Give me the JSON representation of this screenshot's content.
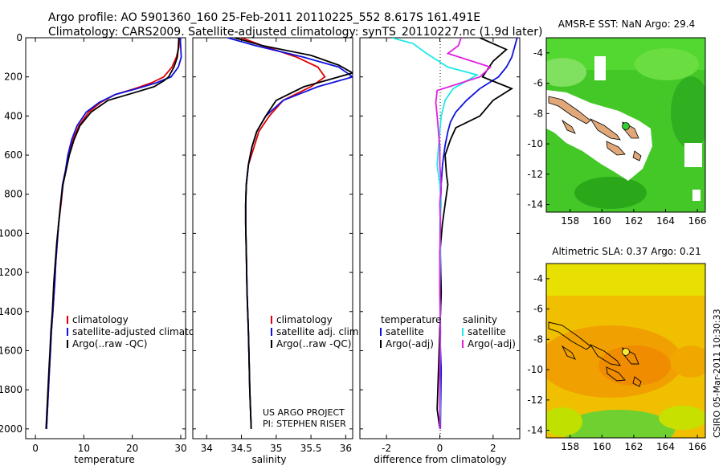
{
  "header": {
    "line1": "Argo profile: AO 5901360_160 25-Feb-2011 20110225_552 8.617S 161.491E",
    "line2": "Climatology: CARS2009. Satellite-adjusted climatology: synTS_20110227.nc (1.9d later)"
  },
  "credit": {
    "project": "US ARGO PROJECT",
    "pi": "PI: STEPHEN RISER",
    "timestamp": "CSIRO 05-Mar-2011 10:30:33"
  },
  "colors": {
    "climatology": "#e00000",
    "satellite": "#1010e0",
    "argo": "#000000",
    "sal_satellite": "#20e8e8",
    "sal_argo": "#e020e0"
  },
  "chart_data": [
    {
      "type": "line",
      "xlabel": "temperature",
      "ylabel": "",
      "xlim": [
        -2,
        31
      ],
      "ylim": [
        2050,
        0
      ],
      "xticks": [
        0,
        10,
        20,
        30
      ],
      "yticks": [
        0,
        200,
        400,
        600,
        800,
        1000,
        1200,
        1400,
        1600,
        1800,
        2000
      ],
      "legend": [
        "climatology",
        "satellite-adjusted climatology",
        "Argo(..raw -QC)"
      ],
      "series": [
        {
          "name": "climatology",
          "color": "#e00000",
          "x": [
            29.8,
            29.6,
            29.1,
            28.2,
            26.5,
            24.0,
            20.5,
            16.5,
            13.5,
            11.0,
            9.0,
            7.8,
            6.9,
            6.3,
            5.7,
            5.3,
            4.8,
            4.5,
            4.2,
            4.0,
            3.6,
            3.3,
            3.1,
            2.9,
            2.7,
            2.5,
            2.3
          ],
          "y": [
            0,
            50,
            100,
            150,
            200,
            230,
            260,
            290,
            330,
            380,
            450,
            520,
            600,
            680,
            750,
            850,
            950,
            1050,
            1150,
            1250,
            1400,
            1500,
            1600,
            1700,
            1800,
            1900,
            2000
          ]
        },
        {
          "name": "satellite-adjusted climatology",
          "color": "#1010e0",
          "x": [
            29.9,
            30.0,
            30.1,
            29.5,
            28.0,
            25.0,
            21.0,
            16.5,
            13.2,
            10.5,
            8.6,
            7.5,
            6.7,
            6.2,
            5.6,
            5.2,
            4.8,
            4.5,
            4.2,
            4.0,
            3.6,
            3.3,
            3.1,
            2.9,
            2.7,
            2.5,
            2.3
          ],
          "y": [
            0,
            50,
            100,
            150,
            200,
            230,
            260,
            290,
            330,
            380,
            450,
            520,
            600,
            680,
            750,
            850,
            950,
            1050,
            1150,
            1250,
            1400,
            1500,
            1600,
            1700,
            1800,
            1900,
            2000
          ]
        },
        {
          "name": "Argo(..raw -QC)",
          "color": "#000000",
          "x": [
            29.6,
            29.5,
            29.3,
            28.6,
            27.5,
            26.5,
            24.5,
            20.5,
            15.0,
            11.5,
            9.2,
            8.0,
            7.0,
            6.3,
            5.7,
            5.2,
            4.8,
            4.4,
            4.1,
            3.8,
            3.5,
            3.2,
            3.0,
            2.8,
            2.6,
            2.4,
            2.2
          ],
          "y": [
            0,
            50,
            100,
            150,
            200,
            220,
            250,
            280,
            320,
            380,
            450,
            520,
            600,
            680,
            750,
            850,
            950,
            1050,
            1150,
            1250,
            1400,
            1500,
            1600,
            1700,
            1800,
            1900,
            2000
          ]
        }
      ]
    },
    {
      "type": "line",
      "xlabel": "salinity",
      "ylabel": "",
      "xlim": [
        33.8,
        36.1
      ],
      "ylim": [
        2050,
        0
      ],
      "xticks": [
        34,
        34.5,
        35,
        35.5,
        36
      ],
      "legend": [
        "climatology",
        "satellite adj. clim.",
        "Argo(..raw -QC)"
      ],
      "series": [
        {
          "name": "climatology",
          "color": "#e00000",
          "x": [
            34.5,
            34.8,
            35.3,
            35.6,
            35.7,
            35.5,
            35.1,
            34.9,
            34.75,
            34.68,
            34.6,
            34.57,
            34.56,
            34.56,
            34.57,
            34.58,
            34.6,
            34.61,
            34.62,
            34.63,
            34.64
          ],
          "y": [
            0,
            40,
            100,
            150,
            200,
            250,
            320,
            400,
            480,
            560,
            650,
            750,
            850,
            950,
            1100,
            1300,
            1500,
            1650,
            1800,
            1900,
            2000
          ]
        },
        {
          "name": "satellite adj. clim.",
          "color": "#1010e0",
          "x": [
            34.3,
            34.7,
            35.4,
            35.9,
            36.1,
            35.6,
            35.1,
            34.85,
            34.72,
            34.65,
            34.6,
            34.57,
            34.56,
            34.56,
            34.57,
            34.58,
            34.6,
            34.61,
            34.62,
            34.63,
            34.64
          ],
          "y": [
            0,
            40,
            100,
            150,
            200,
            250,
            320,
            400,
            480,
            560,
            650,
            750,
            850,
            950,
            1100,
            1300,
            1500,
            1650,
            1800,
            1900,
            2000
          ]
        },
        {
          "name": "Argo(..raw -QC)",
          "color": "#000000",
          "x": [
            34.4,
            34.8,
            35.5,
            35.9,
            36.1,
            35.4,
            35.0,
            34.85,
            34.72,
            34.65,
            34.6,
            34.57,
            34.56,
            34.56,
            34.57,
            34.58,
            34.6,
            34.61,
            34.62,
            34.63,
            34.64
          ],
          "y": [
            0,
            40,
            90,
            140,
            180,
            250,
            320,
            400,
            480,
            560,
            650,
            750,
            850,
            950,
            1100,
            1300,
            1500,
            1650,
            1800,
            1900,
            2000
          ]
        }
      ]
    },
    {
      "type": "line",
      "xlabel": "difference from climatology",
      "ylabel": "",
      "xlim": [
        -3,
        3
      ],
      "ylim": [
        2050,
        0
      ],
      "xticks": [
        -2,
        0,
        2
      ],
      "legend": [
        "temperature",
        "satellite",
        "Argo(-adj)",
        "salinity",
        "satellite",
        "Argo(-adj)"
      ],
      "series": [
        {
          "name": "satellite",
          "color": "#1010e0",
          "x": [
            2.9,
            2.8,
            2.7,
            2.5,
            2.2,
            1.5,
            1.0,
            0.6,
            0.4,
            0.3,
            0.2,
            0.1,
            0.05,
            0.02,
            0.02,
            0.05,
            0.0,
            0.05,
            0.03,
            0.02
          ],
          "y": [
            0,
            50,
            100,
            150,
            200,
            260,
            320,
            380,
            430,
            480,
            550,
            650,
            750,
            900,
            1100,
            1300,
            1500,
            1700,
            1900,
            2000
          ]
        },
        {
          "name": "Argo(-adj)",
          "color": "#000000",
          "x": [
            1.5,
            2.5,
            2.0,
            1.6,
            2.7,
            2.0,
            1.5,
            0.6,
            0.4,
            0.2,
            0.25,
            0.3,
            0.2,
            0.1,
            0.0,
            0.05,
            0.0,
            -0.05,
            -0.1,
            0.0
          ],
          "y": [
            0,
            60,
            120,
            200,
            260,
            320,
            400,
            460,
            520,
            600,
            700,
            750,
            850,
            950,
            1100,
            1300,
            1500,
            1700,
            1900,
            2000
          ]
        },
        {
          "name": "satellite",
          "color": "#20e8e8",
          "x": [
            -1.8,
            -1.0,
            -0.5,
            0.3,
            1.4,
            0.5,
            0.2,
            0.05,
            0.0,
            -0.05,
            -0.1,
            0.0,
            0.05,
            0.0,
            0.02,
            0.0,
            0.03,
            0.0,
            0.02,
            0.0
          ],
          "y": [
            0,
            30,
            80,
            150,
            190,
            260,
            320,
            400,
            480,
            560,
            650,
            750,
            850,
            950,
            1100,
            1300,
            1500,
            1700,
            1900,
            2000
          ]
        },
        {
          "name": "Argo(-adj)",
          "color": "#e020e0",
          "x": [
            0.8,
            0.7,
            0.3,
            1.9,
            1.5,
            -0.1,
            -0.15,
            -0.1,
            -0.05,
            0.0,
            0.0,
            0.05,
            0.0,
            0.02,
            0.0,
            0.0,
            0.02,
            0.0,
            0.0,
            0.0
          ],
          "y": [
            0,
            40,
            80,
            150,
            200,
            270,
            330,
            400,
            480,
            560,
            650,
            750,
            850,
            950,
            1100,
            1300,
            1500,
            1700,
            1900,
            2000
          ]
        }
      ]
    },
    {
      "type": "heatmap",
      "title": "AMSR-E SST: NaN Argo: 29.4",
      "xlim": [
        156.5,
        166.5
      ],
      "ylim": [
        -14.5,
        -3
      ],
      "xticks": [
        158,
        160,
        162,
        164,
        166
      ],
      "yticks": [
        -14,
        -12,
        -10,
        -8,
        -6,
        -4
      ],
      "marker": {
        "lon": 161.49,
        "lat": -8.62
      }
    },
    {
      "type": "heatmap",
      "title": "Altimetric SLA: 0.37 Argo: 0.21",
      "xlim": [
        156.5,
        166.5
      ],
      "ylim": [
        -14.5,
        -3
      ],
      "xticks": [
        158,
        160,
        162,
        164,
        166
      ],
      "yticks": [
        -14,
        -12,
        -10,
        -8,
        -6,
        -4
      ],
      "marker": {
        "lon": 161.49,
        "lat": -8.62
      }
    }
  ]
}
